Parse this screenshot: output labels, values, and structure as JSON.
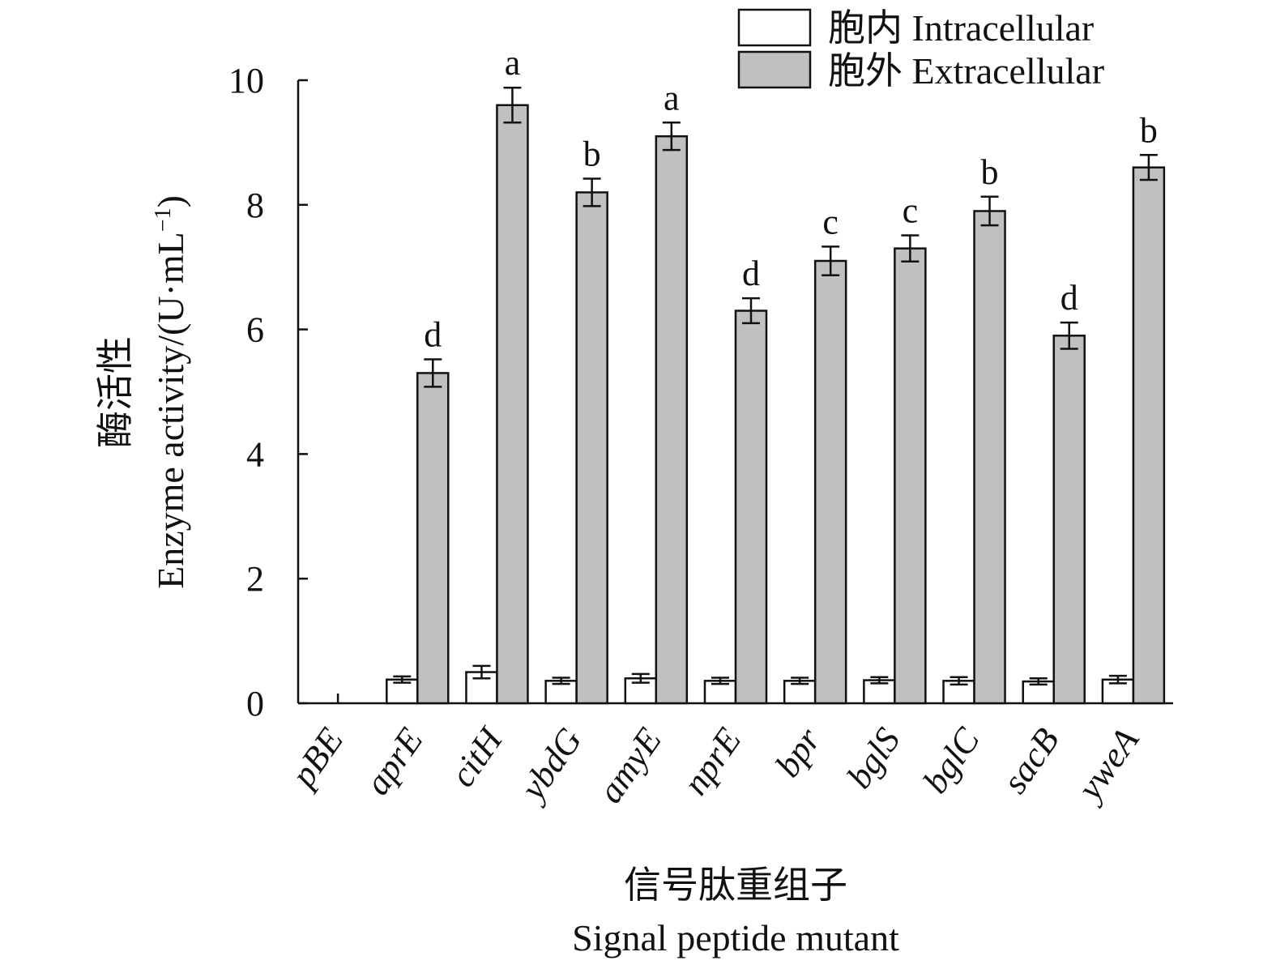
{
  "chart_data": {
    "type": "bar",
    "xlabel_cn": "信号肽重组子",
    "xlabel": "Signal peptide mutant",
    "ylabel_cn": "酶活性",
    "ylabel": "Enzyme activity/(U·mL",
    "ylabel_sup": "−1",
    "ylabel_close": ")",
    "ylim": [
      0,
      10
    ],
    "yticks": [
      "0",
      "2",
      "4",
      "6",
      "8",
      "10"
    ],
    "categories": [
      "pBE",
      "aprE",
      "citH",
      "ybdG",
      "amyE",
      "nprE",
      "bpr",
      "bglS",
      "bglC",
      "sacB",
      "yweA"
    ],
    "series": [
      {
        "name": "胞内 Intracellular",
        "color": "#ffffff",
        "values": [
          0,
          0.38,
          0.5,
          0.36,
          0.4,
          0.36,
          0.36,
          0.37,
          0.36,
          0.35,
          0.38
        ],
        "errors": [
          0,
          0.05,
          0.1,
          0.05,
          0.07,
          0.05,
          0.05,
          0.05,
          0.06,
          0.05,
          0.06
        ]
      },
      {
        "name": "胞外 Extracellular",
        "color": "#c0c0c0",
        "values": [
          0,
          5.3,
          9.6,
          8.2,
          9.1,
          6.3,
          7.1,
          7.3,
          7.9,
          5.9,
          8.6
        ],
        "errors": [
          0,
          0.22,
          0.28,
          0.22,
          0.22,
          0.2,
          0.23,
          0.21,
          0.23,
          0.21,
          0.2
        ]
      }
    ],
    "significance": [
      "",
      "d",
      "a",
      "b",
      "a",
      "d",
      "c",
      "c",
      "b",
      "d",
      "b"
    ],
    "legend_position": "top-right"
  }
}
